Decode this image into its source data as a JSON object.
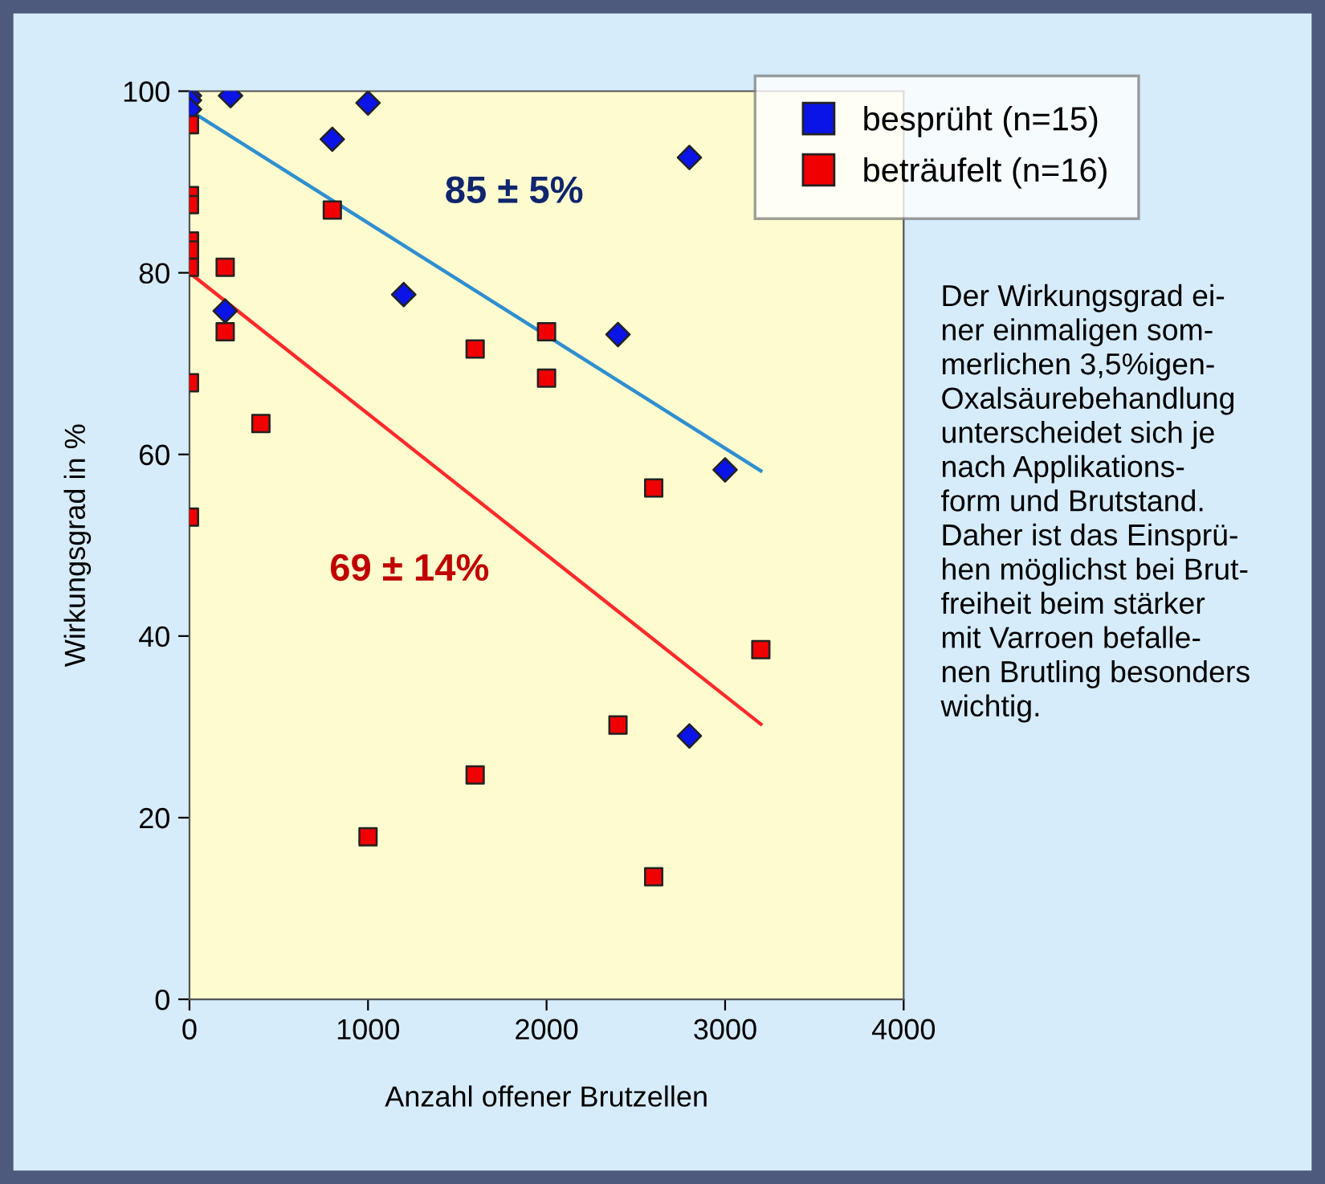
{
  "chart_data": {
    "type": "scatter",
    "xlabel": "Anzahl offener Brutzellen",
    "ylabel": "Wirkungsgrad in %",
    "xlim": [
      0,
      4000
    ],
    "xticks": [
      0,
      1000,
      2000,
      3000,
      4000
    ],
    "ylim": [
      0,
      100
    ],
    "yticks": [
      0,
      20,
      40,
      60,
      80,
      100
    ],
    "grid": false,
    "legend": "top right",
    "series": [
      {
        "name": "besprüht (n=15)",
        "color": "#0a14e6",
        "marker": "diamond",
        "x": [
          0,
          0,
          0,
          230,
          1000,
          800,
          200,
          1200,
          2400,
          2800,
          3000,
          2800
        ],
        "values": [
          99.5,
          99,
          98,
          99.5,
          98.7,
          94.7,
          75.8,
          77.6,
          73.2,
          92.7,
          58.3,
          29
        ]
      },
      {
        "name": "beträufelt (n=16)",
        "color": "#f00000",
        "marker": "square",
        "x": [
          0,
          0,
          0,
          0,
          0,
          0,
          0,
          0,
          200,
          200,
          400,
          800,
          1000,
          1600,
          1600,
          2000,
          2000,
          2400,
          2600,
          2600,
          3200
        ],
        "values": [
          96.3,
          88.5,
          87.5,
          83.5,
          82.5,
          80.6,
          67.9,
          53.1,
          80.6,
          73.5,
          63.4,
          86.9,
          17.9,
          71.6,
          24.7,
          73.5,
          68.4,
          30.2,
          56.3,
          13.5,
          38.5
        ]
      },
      {
        "type": "line",
        "color": "#2f8fd0",
        "x": [
          0,
          3200
        ],
        "values": [
          97.9,
          58.2
        ]
      },
      {
        "type": "line",
        "color": "#ff2a2a",
        "x": [
          0,
          3200
        ],
        "values": [
          80.0,
          30.3
        ]
      }
    ],
    "annotations": [
      "85 ± 5%",
      "69 ± 14%",
      "Der Wirkungsgrad ei-\nner einmaligen som-\nmerlichen 3,5%igen-\nOxalsäurebehandlung\nunterscheidet sich je\nnach Applikations-\nform und Brutstand.\nDaher ist das Einsprü-\nhen möglichst bei Brut-\nfreiheit beim stärker\nmit Varroen befalle-\nnen Brutling besonders\nwichtig."
    ]
  }
}
